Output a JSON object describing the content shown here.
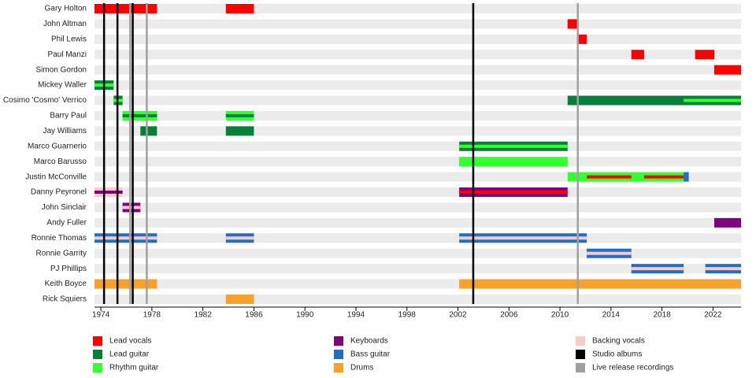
{
  "chart_data": {
    "type": "timeline",
    "xlim": [
      1973.5,
      2024.2
    ],
    "xticks": [
      1974,
      1978,
      1982,
      1986,
      1990,
      1994,
      1998,
      2002,
      2006,
      2010,
      2014,
      2018,
      2022
    ],
    "legend": [
      {
        "name": "Lead vocals",
        "color": "#ff0000"
      },
      {
        "name": "Lead guitar",
        "color": "#0a7f3a"
      },
      {
        "name": "Rhythm guitar",
        "color": "#33ff33"
      },
      {
        "name": "Keyboards",
        "color": "#800080"
      },
      {
        "name": "Bass guitar",
        "color": "#1f6fc5"
      },
      {
        "name": "Drums",
        "color": "#f5a12b"
      },
      {
        "name": "Backing vocals",
        "color": "#ffc8c8"
      },
      {
        "name": "Studio albums",
        "color": "#000000",
        "years": [
          1974.25,
          1975.3,
          1976.5,
          2003.2
        ]
      },
      {
        "name": "Live release recordings",
        "color": "#a0a0a0",
        "years": [
          1976.3,
          1977.6,
          2011.4
        ]
      }
    ],
    "members": [
      {
        "name": "Gary Holton",
        "periods": [
          {
            "role": "Lead vocals",
            "start": 1973.5,
            "end": 1978.4
          },
          {
            "role": "Lead vocals",
            "start": 1983.8,
            "end": 1986.0
          }
        ]
      },
      {
        "name": "John Altman",
        "periods": [
          {
            "role": "Lead vocals",
            "start": 2010.6,
            "end": 2011.4
          }
        ]
      },
      {
        "name": "Phil Lewis",
        "periods": [
          {
            "role": "Lead vocals",
            "start": 2011.4,
            "end": 2012.1
          }
        ]
      },
      {
        "name": "Paul Manzi",
        "periods": [
          {
            "role": "Lead vocals",
            "start": 2015.6,
            "end": 2016.6
          },
          {
            "role": "Lead vocals",
            "start": 2020.6,
            "end": 2022.1
          }
        ]
      },
      {
        "name": "Simon Gordon",
        "periods": [
          {
            "role": "Lead vocals",
            "start": 2022.1,
            "end": 2024.2
          }
        ]
      },
      {
        "name": "Mickey Waller",
        "periods": [
          {
            "role": "Lead guitar",
            "start": 1973.5,
            "end": 1975.0
          },
          {
            "role": "Rhythm guitar",
            "stripe": true,
            "start": 1973.5,
            "end": 1975.0
          }
        ]
      },
      {
        "name": "Cosimo 'Cosmo' Verrico",
        "periods": [
          {
            "role": "Lead guitar",
            "start": 1975.0,
            "end": 1975.7
          },
          {
            "role": "Rhythm guitar",
            "stripe": true,
            "start": 1975.0,
            "end": 1975.7
          },
          {
            "role": "Lead guitar",
            "start": 2010.6,
            "end": 2024.2
          },
          {
            "role": "Rhythm guitar",
            "stripe": true,
            "start": 2019.7,
            "end": 2024.2
          }
        ]
      },
      {
        "name": "Barry Paul",
        "periods": [
          {
            "role": "Rhythm guitar",
            "start": 1975.7,
            "end": 1978.4
          },
          {
            "role": "Lead guitar",
            "stripe": true,
            "start": 1975.7,
            "end": 1978.4
          },
          {
            "role": "Rhythm guitar",
            "start": 1983.8,
            "end": 1986.0
          },
          {
            "role": "Lead guitar",
            "stripe": true,
            "start": 1983.8,
            "end": 1986.0
          }
        ]
      },
      {
        "name": "Jay Williams",
        "periods": [
          {
            "role": "Lead guitar",
            "start": 1977.1,
            "end": 1978.4
          },
          {
            "role": "Lead guitar",
            "start": 1983.8,
            "end": 1986.0
          }
        ]
      },
      {
        "name": "Marco Guarnerio",
        "periods": [
          {
            "role": "Lead guitar",
            "start": 2002.1,
            "end": 2010.6
          },
          {
            "role": "Rhythm guitar",
            "stripe": true,
            "start": 2002.1,
            "end": 2010.6
          }
        ]
      },
      {
        "name": "Marco Barusso",
        "periods": [
          {
            "role": "Rhythm guitar",
            "start": 2002.1,
            "end": 2010.6
          }
        ]
      },
      {
        "name": "Justin McConville",
        "periods": [
          {
            "role": "Rhythm guitar",
            "start": 2010.6,
            "end": 2019.7
          },
          {
            "role": "Bass guitar",
            "start": 2019.7,
            "end": 2020.1
          },
          {
            "role": "Lead vocals",
            "stripe": true,
            "start": 2012.1,
            "end": 2015.6
          },
          {
            "role": "Lead vocals",
            "stripe": true,
            "start": 2016.6,
            "end": 2019.7
          }
        ]
      },
      {
        "name": "Danny Peyronel",
        "periods": [
          {
            "role": "Backing vocals",
            "start": 1973.5,
            "end": 1975.7
          },
          {
            "role": "Keyboards",
            "stripe": true,
            "start": 1973.5,
            "end": 1975.7
          },
          {
            "role": "Keyboards",
            "start": 2002.1,
            "end": 2010.6
          },
          {
            "role": "Lead vocals",
            "stripe": true,
            "start": 2002.1,
            "end": 2010.6
          }
        ]
      },
      {
        "name": "John Sinclair",
        "periods": [
          {
            "role": "Keyboards",
            "start": 1975.7,
            "end": 1977.1
          },
          {
            "role": "Backing vocals",
            "stripe": true,
            "start": 1975.7,
            "end": 1977.1
          }
        ]
      },
      {
        "name": "Andy Fuller",
        "periods": [
          {
            "role": "Keyboards",
            "start": 2022.1,
            "end": 2024.2
          }
        ]
      },
      {
        "name": "Ronnie Thomas",
        "periods": [
          {
            "role": "Bass guitar",
            "start": 1973.5,
            "end": 1978.4
          },
          {
            "role": "Backing vocals",
            "stripe": true,
            "start": 1973.5,
            "end": 1978.4
          },
          {
            "role": "Bass guitar",
            "start": 1983.8,
            "end": 1986.0
          },
          {
            "role": "Backing vocals",
            "stripe": true,
            "start": 1983.8,
            "end": 1986.0
          },
          {
            "role": "Bass guitar",
            "start": 2002.1,
            "end": 2012.1
          },
          {
            "role": "Backing vocals",
            "stripe": true,
            "start": 2002.1,
            "end": 2012.1
          }
        ]
      },
      {
        "name": "Ronnie Garrity",
        "periods": [
          {
            "role": "Bass guitar",
            "start": 2012.1,
            "end": 2015.6
          },
          {
            "role": "Backing vocals",
            "stripe": true,
            "start": 2012.1,
            "end": 2015.6
          }
        ]
      },
      {
        "name": "PJ Phillips",
        "periods": [
          {
            "role": "Bass guitar",
            "start": 2015.6,
            "end": 2019.7
          },
          {
            "role": "Backing vocals",
            "stripe": true,
            "start": 2015.6,
            "end": 2019.7
          },
          {
            "role": "Bass guitar",
            "start": 2021.4,
            "end": 2024.2
          },
          {
            "role": "Backing vocals",
            "stripe": true,
            "start": 2021.4,
            "end": 2024.2
          }
        ]
      },
      {
        "name": "Keith Boyce",
        "periods": [
          {
            "role": "Drums",
            "start": 1973.5,
            "end": 1978.4
          },
          {
            "role": "Drums",
            "start": 2002.1,
            "end": 2024.2
          }
        ]
      },
      {
        "name": "Rick Squiers",
        "periods": [
          {
            "role": "Drums",
            "start": 1983.8,
            "end": 1986.0
          }
        ]
      }
    ]
  }
}
